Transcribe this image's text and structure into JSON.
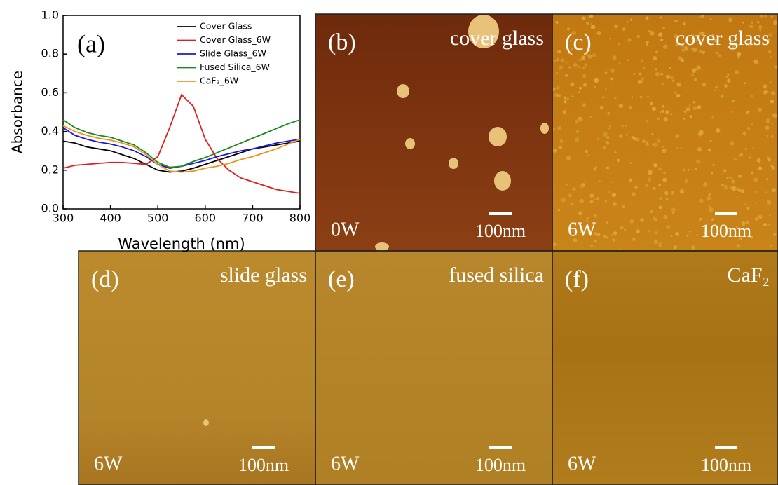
{
  "chart_data": {
    "type": "line",
    "panel_label": "(a)",
    "x_label": "Wavelength (nm)",
    "y_label": "Absorbance",
    "x": [
      300,
      325,
      350,
      375,
      400,
      425,
      450,
      475,
      500,
      525,
      550,
      575,
      600,
      625,
      650,
      675,
      700,
      725,
      750,
      775,
      800
    ],
    "series": [
      {
        "name": "Cover Glass",
        "color": "#000000",
        "values": [
          0.35,
          0.34,
          0.32,
          0.31,
          0.3,
          0.28,
          0.26,
          0.23,
          0.2,
          0.19,
          0.195,
          0.21,
          0.23,
          0.25,
          0.27,
          0.29,
          0.31,
          0.32,
          0.33,
          0.34,
          0.35
        ]
      },
      {
        "name": "Cover Glass_6W",
        "color": "#e0201c",
        "values": [
          0.21,
          0.225,
          0.23,
          0.235,
          0.24,
          0.24,
          0.235,
          0.23,
          0.27,
          0.42,
          0.59,
          0.53,
          0.36,
          0.26,
          0.2,
          0.16,
          0.14,
          0.12,
          0.1,
          0.09,
          0.08
        ]
      },
      {
        "name": "Slide Glass_6W",
        "color": "#1a1ad6",
        "values": [
          0.42,
          0.38,
          0.36,
          0.345,
          0.335,
          0.32,
          0.3,
          0.27,
          0.23,
          0.21,
          0.22,
          0.235,
          0.25,
          0.27,
          0.285,
          0.3,
          0.31,
          0.325,
          0.34,
          0.35,
          0.36
        ]
      },
      {
        "name": "Fused Silica_6W",
        "color": "#1a8a1a",
        "values": [
          0.46,
          0.42,
          0.395,
          0.38,
          0.37,
          0.35,
          0.33,
          0.29,
          0.24,
          0.215,
          0.22,
          0.245,
          0.265,
          0.29,
          0.315,
          0.34,
          0.365,
          0.39,
          0.415,
          0.44,
          0.46
        ]
      },
      {
        "name": "CaF₂_6W",
        "color": "#f0921e",
        "values": [
          0.43,
          0.4,
          0.38,
          0.365,
          0.355,
          0.34,
          0.32,
          0.28,
          0.23,
          0.195,
          0.19,
          0.195,
          0.21,
          0.22,
          0.235,
          0.255,
          0.27,
          0.29,
          0.31,
          0.335,
          0.36
        ]
      }
    ],
    "xlim": [
      300,
      800
    ],
    "xticks": [
      300,
      400,
      500,
      600,
      700,
      800
    ],
    "ylim": [
      0,
      1
    ],
    "yticks": [
      {
        "value": 0,
        "label": "0.0"
      },
      0.2,
      0.4,
      0.6,
      0.8,
      {
        "value": 1,
        "label": "1.0"
      }
    ]
  },
  "panels": [
    {
      "letter": "(b)",
      "material": "cover glass",
      "power": "0W",
      "scale": "100nm"
    },
    {
      "letter": "(c)",
      "material": "cover glass",
      "power": "6W",
      "scale": "100nm"
    },
    {
      "letter": "(d)",
      "material": "slide glass",
      "power": "6W",
      "scale": "100nm"
    },
    {
      "letter": "(e)",
      "material": "fused silica",
      "power": "6W",
      "scale": "100nm"
    },
    {
      "letter": "(f)",
      "material": "CaF₂",
      "power": "6W",
      "scale": "100nm"
    }
  ]
}
